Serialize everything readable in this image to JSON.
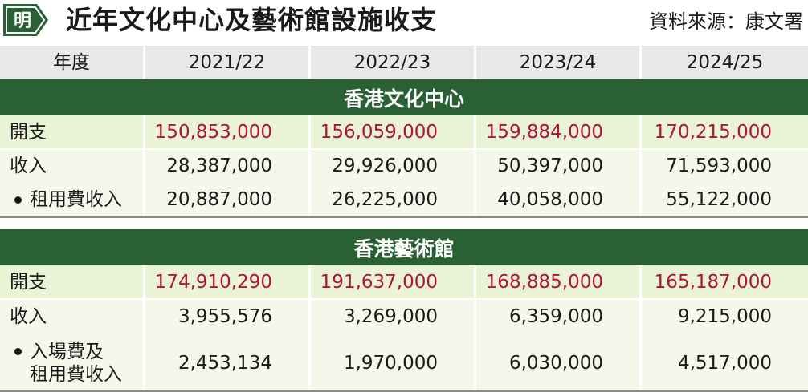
{
  "header": {
    "logo_char": "明",
    "title": "近年文化中心及藝術館設施收支",
    "source": "資料來源：康文署"
  },
  "columns": [
    "年度",
    "2021/22",
    "2022/23",
    "2023/24",
    "2024/25"
  ],
  "sections": [
    {
      "name": "香港文化中心",
      "rows": [
        {
          "label": "開支",
          "values": [
            "150,853,000",
            "156,059,000",
            "159,884,000",
            "170,215,000"
          ]
        },
        {
          "label": "收入",
          "values": [
            "28,387,000",
            "29,926,000",
            "50,397,000",
            "71,593,000"
          ]
        },
        {
          "label": "租用費收入",
          "values": [
            "20,887,000",
            "26,225,000",
            "40,058,000",
            "55,122,000"
          ]
        }
      ]
    },
    {
      "name": "香港藝術館",
      "rows": [
        {
          "label": "開支",
          "values": [
            "174,910,290",
            "191,637,000",
            "168,885,000",
            "165,187,000"
          ]
        },
        {
          "label": "收入",
          "values": [
            "3,955,576",
            "3,269,000",
            "6,359,000",
            "9,215,000"
          ]
        },
        {
          "label_line1": "入場費及",
          "label_line2": "租用費收入",
          "values": [
            "2,453,134",
            "1,970,000",
            "6,030,000",
            "4,517,000"
          ]
        }
      ]
    }
  ],
  "colors": {
    "section_green": "#2a6134",
    "expense_red": "#b0143c",
    "band_light": "#eaf3d6",
    "header_grey": "#e7e8e8"
  }
}
